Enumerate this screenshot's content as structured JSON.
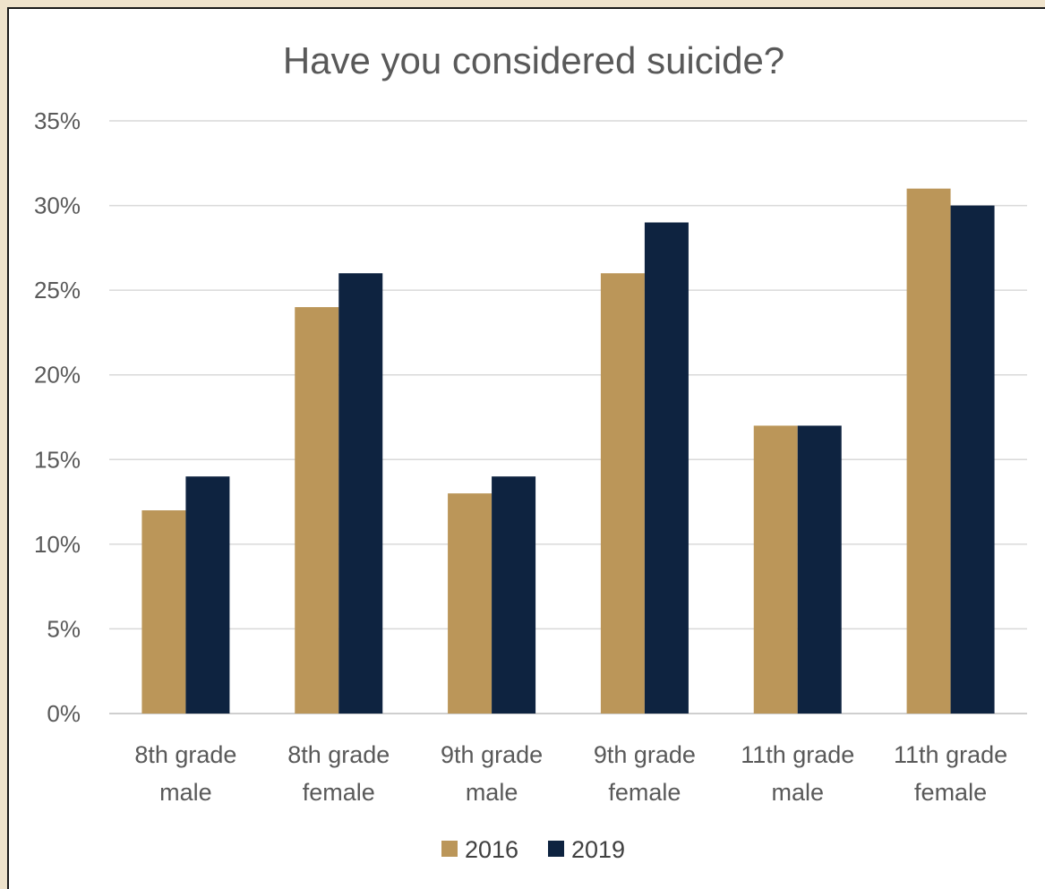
{
  "chart_data": {
    "type": "bar",
    "title": "Have you considered suicide?",
    "categories": [
      [
        "8th grade",
        "male"
      ],
      [
        "8th grade",
        "female"
      ],
      [
        "9th grade",
        "male"
      ],
      [
        "9th grade",
        "female"
      ],
      [
        "11th grade",
        "male"
      ],
      [
        "11th grade",
        "female"
      ]
    ],
    "series": [
      {
        "name": "2016",
        "color": "#bb9659",
        "values": [
          12,
          24,
          13,
          26,
          17,
          31
        ]
      },
      {
        "name": "2019",
        "color": "#0e2340",
        "values": [
          14,
          26,
          14,
          29,
          17,
          30
        ]
      }
    ],
    "ylim": [
      0,
      35
    ],
    "yticks": [
      0,
      5,
      10,
      15,
      20,
      25,
      30,
      35
    ],
    "ytick_labels": [
      "0%",
      "5%",
      "10%",
      "15%",
      "20%",
      "25%",
      "30%",
      "35%"
    ],
    "grid": true,
    "legend_position": "bottom",
    "xlabel": "",
    "ylabel": ""
  }
}
